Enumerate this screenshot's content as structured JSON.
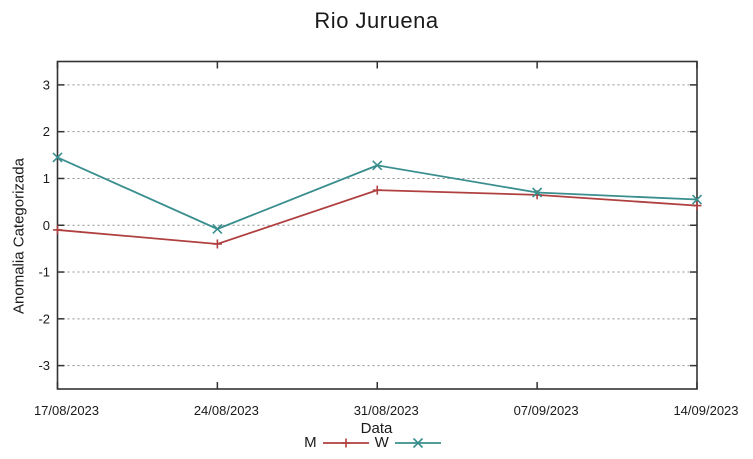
{
  "chart_data": {
    "type": "line",
    "title": "Rio Juruena",
    "xlabel": "Data",
    "ylabel": "Anomalia Categorizada",
    "categories": [
      "17/08/2023",
      "24/08/2023",
      "31/08/2023",
      "07/09/2023",
      "14/09/2023"
    ],
    "series": [
      {
        "name": "M",
        "color": "#b04040",
        "marker": "plus",
        "values": [
          -0.1,
          -0.4,
          0.75,
          0.65,
          0.42
        ]
      },
      {
        "name": "W",
        "color": "#3a8e8e",
        "marker": "cross",
        "values": [
          1.45,
          -0.08,
          1.28,
          0.7,
          0.55
        ]
      }
    ],
    "ylim": [
      -3.5,
      3.5
    ],
    "yticks": [
      -3,
      -2,
      -1,
      0,
      1,
      2,
      3
    ],
    "grid": "dotted-horizontal",
    "legend_position": "below"
  },
  "style_colors": {
    "axis": "#333333",
    "grid": "#909090",
    "tick_text": "#1a1a1a"
  }
}
